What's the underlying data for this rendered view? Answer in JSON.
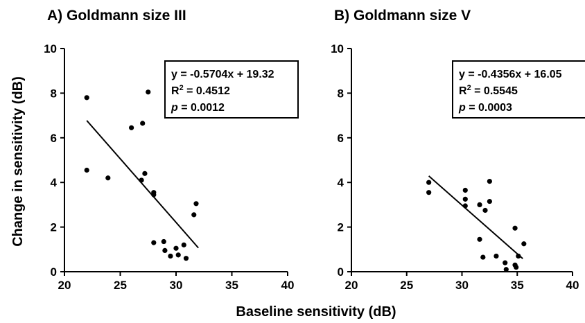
{
  "figure": {
    "xlabel": "Baseline sensitivity (dB)",
    "ylabel": "Change in sensitivity (dB)"
  },
  "chart_data": [
    {
      "type": "scatter",
      "title": "A) Goldmann size III",
      "xlim": [
        20,
        40
      ],
      "ylim": [
        0,
        10
      ],
      "x_ticks": [
        20,
        25,
        30,
        35,
        40
      ],
      "y_ticks": [
        0,
        2,
        4,
        6,
        8,
        10
      ],
      "points": [
        {
          "x": 22.0,
          "y": 7.8
        },
        {
          "x": 22.0,
          "y": 4.55
        },
        {
          "x": 23.9,
          "y": 4.2
        },
        {
          "x": 26.0,
          "y": 6.45
        },
        {
          "x": 26.9,
          "y": 4.1
        },
        {
          "x": 27.0,
          "y": 6.65
        },
        {
          "x": 27.2,
          "y": 4.4
        },
        {
          "x": 27.5,
          "y": 8.05
        },
        {
          "x": 28.0,
          "y": 3.55
        },
        {
          "x": 28.0,
          "y": 3.45
        },
        {
          "x": 28.0,
          "y": 1.3
        },
        {
          "x": 28.9,
          "y": 1.35
        },
        {
          "x": 29.0,
          "y": 0.95
        },
        {
          "x": 29.5,
          "y": 0.7
        },
        {
          "x": 30.0,
          "y": 1.05
        },
        {
          "x": 30.2,
          "y": 0.75
        },
        {
          "x": 30.7,
          "y": 1.2
        },
        {
          "x": 30.9,
          "y": 0.6
        },
        {
          "x": 31.6,
          "y": 2.55
        },
        {
          "x": 31.8,
          "y": 3.05
        }
      ],
      "regression": {
        "slope": -0.5704,
        "intercept": 19.32,
        "x_range": [
          22,
          32
        ]
      },
      "annotation": {
        "eq_line": "y = -0.5704x + 19.32",
        "r2_prefix": "R",
        "r2_sup": "2",
        "r2_value": " = 0.4512",
        "p_symbol": "p",
        "p_value": " = 0.0012"
      }
    },
    {
      "type": "scatter",
      "title": "B) Goldmann size V",
      "xlim": [
        20,
        40
      ],
      "ylim": [
        0,
        10
      ],
      "x_ticks": [
        20,
        25,
        30,
        35,
        40
      ],
      "y_ticks": [
        0,
        2,
        4,
        6,
        8,
        10
      ],
      "points": [
        {
          "x": 27.0,
          "y": 4.0
        },
        {
          "x": 27.0,
          "y": 3.55
        },
        {
          "x": 30.3,
          "y": 3.65
        },
        {
          "x": 30.3,
          "y": 3.25
        },
        {
          "x": 30.3,
          "y": 2.95
        },
        {
          "x": 31.6,
          "y": 3.0
        },
        {
          "x": 31.6,
          "y": 1.45
        },
        {
          "x": 31.9,
          "y": 0.65
        },
        {
          "x": 32.1,
          "y": 2.75
        },
        {
          "x": 32.5,
          "y": 4.05
        },
        {
          "x": 32.5,
          "y": 3.15
        },
        {
          "x": 33.1,
          "y": 0.7
        },
        {
          "x": 33.9,
          "y": 0.4
        },
        {
          "x": 34.0,
          "y": 0.1
        },
        {
          "x": 34.8,
          "y": 1.95
        },
        {
          "x": 34.8,
          "y": 0.3
        },
        {
          "x": 34.9,
          "y": 0.2
        },
        {
          "x": 35.1,
          "y": 0.7
        },
        {
          "x": 35.6,
          "y": 1.25
        }
      ],
      "regression": {
        "slope": -0.4356,
        "intercept": 16.05,
        "x_range": [
          27,
          35.5
        ]
      },
      "annotation": {
        "eq_line": "y = -0.4356x + 16.05",
        "r2_prefix": "R",
        "r2_sup": "2",
        "r2_value": " = 0.5545",
        "p_symbol": "p",
        "p_value": " = 0.0003"
      }
    }
  ]
}
